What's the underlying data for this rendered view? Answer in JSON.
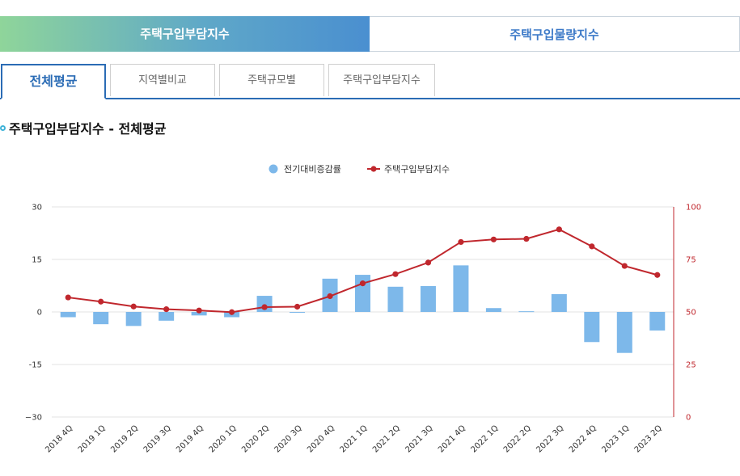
{
  "top_tabs": [
    {
      "label": "주택구입부담지수",
      "active": true
    },
    {
      "label": "주택구입물량지수",
      "active": false
    }
  ],
  "sub_tabs": [
    {
      "label": "전체평균",
      "active": true
    },
    {
      "label": "지역별비교",
      "active": false
    },
    {
      "label": "주택규모별",
      "active": false
    },
    {
      "label": "주택구입부담지수",
      "active": false
    }
  ],
  "section_title": "주택구입부담지수 - 전체평균",
  "chart_data": {
    "type": "bar+line",
    "categories": [
      "2018 4Q",
      "2019 1Q",
      "2019 2Q",
      "2019 3Q",
      "2019 4Q",
      "2020 1Q",
      "2020 2Q",
      "2020 3Q",
      "2020 4Q",
      "2021 1Q",
      "2021 2Q",
      "2021 3Q",
      "2021 4Q",
      "2022 1Q",
      "2022 2Q",
      "2022 3Q",
      "2022 4Q",
      "2023 1Q",
      "2023 2Q"
    ],
    "series": [
      {
        "name": "전기대비증감률",
        "type": "bar",
        "axis": "left",
        "color": "#7db8ea",
        "values": [
          -1.5,
          -3.5,
          -4.0,
          -2.5,
          -1.0,
          -1.5,
          4.6,
          -0.2,
          9.5,
          10.6,
          7.2,
          7.4,
          13.3,
          1.1,
          0.2,
          5.1,
          -8.6,
          -11.7,
          -5.3
        ]
      },
      {
        "name": "주택구입부담지수",
        "type": "line",
        "axis": "right",
        "color": "#c0272d",
        "values": [
          56.9,
          54.9,
          52.6,
          51.3,
          50.7,
          49.9,
          52.3,
          52.5,
          57.5,
          63.6,
          68.0,
          73.5,
          83.3,
          84.5,
          84.8,
          89.3,
          81.2,
          71.9,
          67.6
        ]
      }
    ],
    "y_left": {
      "min": -30,
      "max": 30,
      "ticks": [
        30,
        15,
        0,
        -15,
        -30
      ],
      "tick_labels": [
        "30",
        "15",
        "0",
        "-15",
        "−30"
      ]
    },
    "y_right": {
      "min": 0,
      "max": 100,
      "ticks": [
        100,
        75,
        50,
        25,
        0
      ],
      "tick_labels": [
        "100",
        "75",
        "50",
        "25",
        "0"
      ]
    },
    "grid": true,
    "legend_position": "top-center"
  }
}
